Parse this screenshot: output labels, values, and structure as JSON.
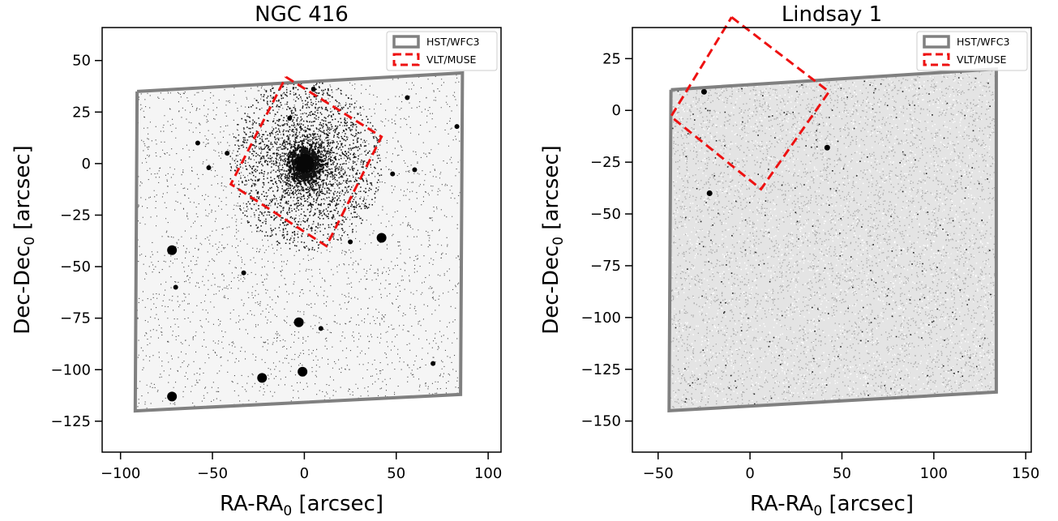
{
  "chart_data": [
    {
      "type": "scatter",
      "title": "NGC 416",
      "xlabel": "RA-RA",
      "ylabel": "Dec-Dec",
      "label_subscript": "0",
      "label_unit": "[arcsec]",
      "xlim": [
        -110,
        107
      ],
      "ylim": [
        -140,
        66
      ],
      "xticks": [
        -100,
        -50,
        0,
        50,
        100
      ],
      "yticks": [
        50,
        25,
        0,
        -25,
        -50,
        -75,
        -100,
        -125
      ],
      "xtick_labels": [
        "−100",
        "−50",
        "0",
        "50",
        "100"
      ],
      "ytick_labels": [
        "50",
        "25",
        "0",
        "−25",
        "−50",
        "−75",
        "−100",
        "−125"
      ],
      "grid": false,
      "legend_position": "top-right",
      "background_density": 0.35,
      "cluster_center": [
        0,
        0
      ],
      "cluster_density": "high",
      "bright_stars": [
        [
          -72,
          -42
        ],
        [
          42,
          -36
        ],
        [
          -3,
          -77
        ],
        [
          -23,
          -104
        ],
        [
          -1,
          -101
        ],
        [
          -72,
          -113
        ],
        [
          5,
          36
        ],
        [
          56,
          32
        ],
        [
          83,
          18
        ],
        [
          -8,
          22
        ],
        [
          48,
          -5
        ],
        [
          -58,
          10
        ],
        [
          -42,
          5
        ],
        [
          -52,
          -2
        ],
        [
          60,
          -3
        ],
        [
          70,
          -97
        ],
        [
          -33,
          -53
        ],
        [
          -70,
          -60
        ],
        [
          9,
          -80
        ],
        [
          25,
          -38
        ]
      ],
      "series": [
        {
          "name": "HST/WFC3",
          "color": "#808080",
          "style": "solid",
          "x": [
            -91,
            86,
            85,
            -92,
            -91
          ],
          "y": [
            35,
            44,
            -112,
            -120,
            35
          ]
        },
        {
          "name": "VLT/MUSE",
          "color": "#ee1111",
          "style": "dashed",
          "x": [
            -10,
            42,
            12,
            -40,
            -10
          ],
          "y": [
            42,
            13,
            -40,
            -10,
            42
          ]
        }
      ]
    },
    {
      "type": "scatter",
      "title": "Lindsay 1",
      "xlabel": "RA-RA",
      "ylabel": "Dec-Dec",
      "label_subscript": "0",
      "label_unit": "[arcsec]",
      "xlim": [
        -64,
        153
      ],
      "ylim": [
        -165,
        40
      ],
      "xticks": [
        -50,
        0,
        50,
        100,
        150
      ],
      "yticks": [
        25,
        0,
        -25,
        -50,
        -75,
        -100,
        -125,
        -150
      ],
      "xtick_labels": [
        "−50",
        "0",
        "50",
        "100",
        "150"
      ],
      "ytick_labels": [
        "25",
        "0",
        "−25",
        "−50",
        "−75",
        "−100",
        "−125",
        "−150"
      ],
      "grid": false,
      "legend_position": "top-right",
      "background_density": 0.9,
      "bright_stars": [
        [
          42,
          -18
        ],
        [
          -22,
          -40
        ],
        [
          -25,
          9
        ]
      ],
      "series": [
        {
          "name": "HST/WFC3",
          "color": "#808080",
          "style": "solid",
          "x": [
            -43,
            134,
            134,
            -44,
            -43
          ],
          "y": [
            10,
            20,
            -136,
            -145,
            10
          ]
        },
        {
          "name": "VLT/MUSE",
          "color": "#ee1111",
          "style": "dashed",
          "x": [
            -10,
            43,
            6,
            -43,
            -10
          ],
          "y": [
            45,
            9,
            -38,
            -3,
            45
          ]
        }
      ]
    }
  ]
}
